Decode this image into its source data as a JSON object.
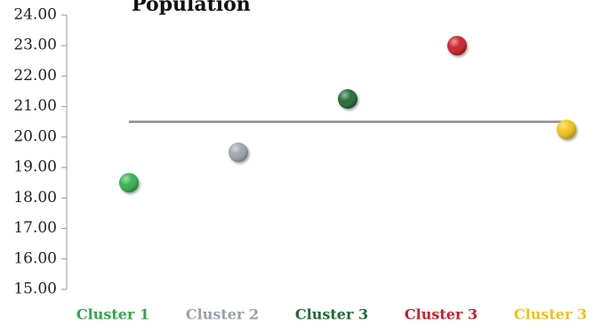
{
  "chart_data": {
    "type": "scatter",
    "title": "Population",
    "xlabel": "",
    "ylabel": "",
    "ylim": [
      15,
      24
    ],
    "yticks": [
      "15.00",
      "16.00",
      "17.00",
      "18.00",
      "19.00",
      "20.00",
      "21.00",
      "22.00",
      "23.00",
      "24.00"
    ],
    "categories": [
      "Cluster 1",
      "Cluster 2",
      "Cluster 3",
      "Cluster 3",
      "Cluster 3"
    ],
    "category_colors": [
      "#2fa84a",
      "#9aa0aa",
      "#1e6b34",
      "#c8202a",
      "#f2c10f"
    ],
    "values": [
      18.5,
      19.5,
      21.25,
      23.0,
      20.25
    ],
    "point_colors": [
      "#31b24a",
      "#9ea3ad",
      "#1f6a34",
      "#cc1e28",
      "#f3c312"
    ],
    "reference_line": {
      "y": 20.5,
      "color": "#8c8c8c"
    },
    "grid": false
  }
}
